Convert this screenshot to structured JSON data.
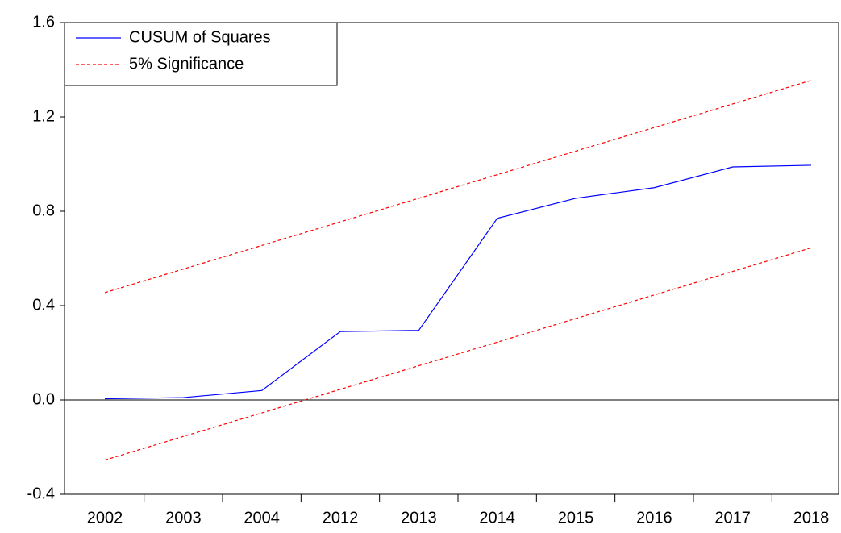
{
  "chart_data": {
    "type": "line",
    "categories": [
      "2002",
      "2003",
      "2004",
      "2012",
      "2013",
      "2014",
      "2015",
      "2016",
      "2017",
      "2018"
    ],
    "series": [
      {
        "name": "CUSUM of Squares",
        "color": "#0000ff",
        "dashed": false,
        "values": [
          0.005,
          0.01,
          0.04,
          0.29,
          0.295,
          0.77,
          0.855,
          0.9,
          0.988,
          0.995
        ]
      },
      {
        "name": "5% Significance",
        "color": "#ff0000",
        "dashed": true,
        "values": [
          0.455,
          0.555,
          0.655,
          0.755,
          0.855,
          0.955,
          1.055,
          1.155,
          1.255,
          1.355
        ]
      },
      {
        "color": "#ff0000",
        "dashed": true,
        "values": [
          -0.255,
          -0.155,
          -0.055,
          0.045,
          0.145,
          0.245,
          0.345,
          0.445,
          0.545,
          0.645
        ]
      }
    ],
    "ylim": [
      -0.4,
      1.6
    ],
    "yticks": [
      -0.4,
      {
        "value": 0,
        "label": "0.0"
      },
      0.4,
      0.8,
      1.2,
      1.6
    ],
    "zero_line": true,
    "legend": "top-left"
  }
}
